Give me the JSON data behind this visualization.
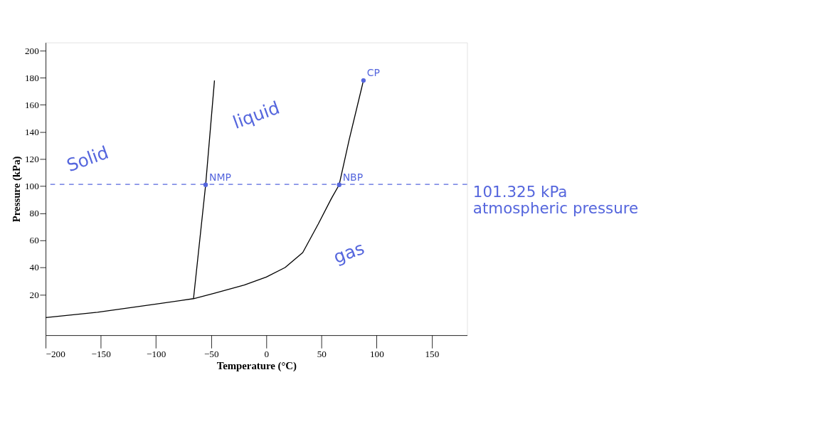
{
  "chart_data": {
    "type": "line",
    "xlabel": "Temperature (°C)",
    "ylabel": "Pressure (kPa)",
    "xlim": [
      -200,
      182
    ],
    "xticks": [
      -200,
      -150,
      -100,
      -50,
      0,
      50,
      100,
      150
    ],
    "ylim": [
      -10,
      206
    ],
    "yticks": [
      20,
      40,
      60,
      80,
      100,
      120,
      140,
      160,
      180,
      200
    ],
    "grid": false,
    "line_style": "solid",
    "marker": "none",
    "series": [
      {
        "color": "#000000",
        "x": [
          -200,
          -153,
          -100,
          -66,
          -47,
          -20,
          0,
          17,
          33,
          47,
          59,
          66,
          75,
          88
        ],
        "values": [
          3,
          7,
          13,
          17,
          21,
          27,
          33,
          40,
          51,
          72,
          91,
          101,
          134,
          178
        ]
      },
      {
        "color": "#000000",
        "x": [
          -66,
          -55,
          -47
        ],
        "values": [
          17,
          101,
          178
        ]
      },
      {
        "type": "scatter",
        "color": "#5566dd",
        "marker": "circle",
        "x": [
          -55,
          66,
          88
        ],
        "values": [
          101,
          101,
          178
        ]
      }
    ],
    "ref_lines": [
      {
        "axis": "y",
        "value": 101.325,
        "label": "101.325 kPa atmospheric pressure",
        "color": "#5566dd",
        "line_style": "dashed"
      }
    ],
    "annotations": [
      {
        "text": "NMP",
        "x": -55,
        "y": 101
      },
      {
        "text": "NBP",
        "x": 66,
        "y": 101
      },
      {
        "text": "CP",
        "x": 88,
        "y": 178
      },
      "Solid",
      "liquid",
      "gas"
    ]
  }
}
